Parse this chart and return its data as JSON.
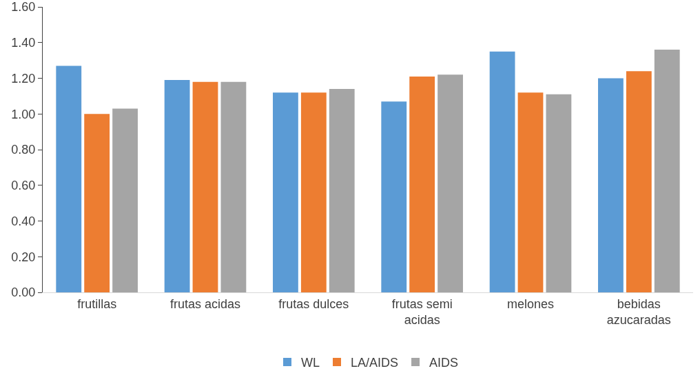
{
  "chart_data": {
    "type": "bar",
    "categories": [
      "frutillas",
      "frutas acidas",
      "frutas dulces",
      "frutas semi acidas",
      "melones",
      "bebidas azucaradas"
    ],
    "series": [
      {
        "name": "WL",
        "color": "#5b9bd5",
        "values": [
          1.27,
          1.19,
          1.12,
          1.07,
          1.35,
          1.2
        ]
      },
      {
        "name": "LA/AIDS",
        "color": "#ed7d31",
        "values": [
          1.0,
          1.18,
          1.12,
          1.21,
          1.12,
          1.24
        ]
      },
      {
        "name": "AIDS",
        "color": "#a5a5a5",
        "values": [
          1.03,
          1.18,
          1.14,
          1.22,
          1.11,
          1.36
        ]
      }
    ],
    "ylim": [
      0,
      1.6
    ],
    "yticks": [
      {
        "value": 0,
        "label": "0.00"
      },
      {
        "value": 0.2,
        "label": "0.20"
      },
      {
        "value": 0.4,
        "label": "0.40"
      },
      {
        "value": 0.6,
        "label": "0.60"
      },
      {
        "value": 0.8,
        "label": "0.80"
      },
      {
        "value": 1,
        "label": "1.00"
      },
      {
        "value": 1.2,
        "label": "1.20"
      },
      {
        "value": 1.4,
        "label": "1.40"
      },
      {
        "value": 1.6,
        "label": "1.60"
      }
    ],
    "grid": false,
    "legend": "bottom"
  }
}
